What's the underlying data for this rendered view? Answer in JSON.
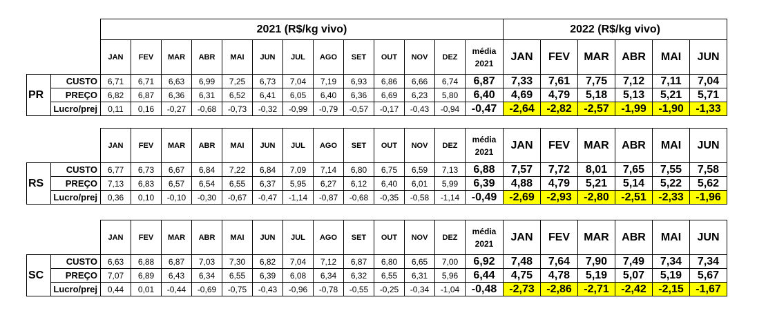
{
  "header": {
    "year_2021": "2021  (R$/kg vivo)",
    "year_2022": "2022 (R$/kg vivo)"
  },
  "blocks": [
    {
      "state": "PR",
      "months_2021": [
        "JAN",
        "FEV",
        "MAR",
        "ABR",
        "MAI",
        "JUN",
        "JUL",
        "AGO",
        "SET",
        "OUT",
        "NOV",
        "DEZ"
      ],
      "media_label": "média 2021",
      "months_2022": [
        "JAN",
        "FEV",
        "MAR",
        "ABR",
        "MAI",
        "JUN"
      ],
      "rows": [
        {
          "label": "CUSTO",
          "values_2021": [
            "6,71",
            "6,71",
            "6,63",
            "6,99",
            "7,25",
            "6,73",
            "7,04",
            "7,19",
            "6,93",
            "6,86",
            "6,66",
            "6,74"
          ],
          "media": "6,87",
          "values_2022": [
            "7,33",
            "7,61",
            "7,75",
            "7,12",
            "7,11",
            "7,04"
          ]
        },
        {
          "label": "PREÇO",
          "values_2021": [
            "6,82",
            "6,87",
            "6,36",
            "6,31",
            "6,52",
            "6,41",
            "6,05",
            "6,40",
            "6,36",
            "6,69",
            "6,23",
            "5,80"
          ],
          "media": "6,40",
          "values_2022": [
            "4,69",
            "4,79",
            "5,18",
            "5,13",
            "5,21",
            "5,71"
          ]
        },
        {
          "label": "Lucro/prej",
          "values_2021": [
            "0,11",
            "0,16",
            "-0,27",
            "-0,68",
            "-0,73",
            "-0,32",
            "-0,99",
            "-0,79",
            "-0,57",
            "-0,17",
            "-0,43",
            "-0,94"
          ],
          "media": "-0,47",
          "values_2022": [
            "-2,64",
            "-2,82",
            "-2,57",
            "-1,99",
            "-1,90",
            "-1,33"
          ]
        }
      ]
    },
    {
      "state": "RS",
      "months_2021": [
        "JAN",
        "FEV",
        "MAR",
        "ABR",
        "MAI",
        "JUN",
        "JUL",
        "AGO",
        "SET",
        "OUT",
        "NOV",
        "DEZ"
      ],
      "media_label": "média 2021",
      "months_2022": [
        "JAN",
        "FEV",
        "MAR",
        "ABR",
        "MAI",
        "JUN"
      ],
      "rows": [
        {
          "label": "CUSTO",
          "values_2021": [
            "6,77",
            "6,73",
            "6,67",
            "6,84",
            "7,22",
            "6,84",
            "7,09",
            "7,14",
            "6,80",
            "6,75",
            "6,59",
            "7,13"
          ],
          "media": "6,88",
          "values_2022": [
            "7,57",
            "7,72",
            "8,01",
            "7,65",
            "7,55",
            "7,58"
          ]
        },
        {
          "label": "PREÇO",
          "values_2021": [
            "7,13",
            "6,83",
            "6,57",
            "6,54",
            "6,55",
            "6,37",
            "5,95",
            "6,27",
            "6,12",
            "6,40",
            "6,01",
            "5,99"
          ],
          "media": "6,39",
          "values_2022": [
            "4,88",
            "4,79",
            "5,21",
            "5,14",
            "5,22",
            "5,62"
          ]
        },
        {
          "label": "Lucro/prej",
          "values_2021": [
            "0,36",
            "0,10",
            "-0,10",
            "-0,30",
            "-0,67",
            "-0,47",
            "-1,14",
            "-0,87",
            "-0,68",
            "-0,35",
            "-0,58",
            "-1,14"
          ],
          "media": "-0,49",
          "values_2022": [
            "-2,69",
            "-2,93",
            "-2,80",
            "-2,51",
            "-2,33",
            "-1,96"
          ]
        }
      ]
    },
    {
      "state": "SC",
      "months_2021": [
        "JAN",
        "FEV",
        "MAR",
        "ABR",
        "MAI",
        "JUN",
        "JUL",
        "AGO",
        "SET",
        "OUT",
        "NOV",
        "DEZ"
      ],
      "media_label": "média 2021",
      "months_2022": [
        "JAN",
        "FEV",
        "MAR",
        "ABR",
        "MAI",
        "JUN"
      ],
      "rows": [
        {
          "label": "CUSTO",
          "values_2021": [
            "6,63",
            "6,88",
            "6,87",
            "7,03",
            "7,30",
            "6,82",
            "7,04",
            "7,12",
            "6,87",
            "6,80",
            "6,65",
            "7,00"
          ],
          "media": "6,92",
          "values_2022": [
            "7,48",
            "7,64",
            "7,90",
            "7,49",
            "7,34",
            "7,34"
          ]
        },
        {
          "label": "PREÇO",
          "values_2021": [
            "7,07",
            "6,89",
            "6,43",
            "6,34",
            "6,55",
            "6,39",
            "6,08",
            "6,34",
            "6,32",
            "6,55",
            "6,31",
            "5,96"
          ],
          "media": "6,44",
          "values_2022": [
            "4,75",
            "4,78",
            "5,19",
            "5,07",
            "5,19",
            "5,67"
          ]
        },
        {
          "label": "Lucro/prej",
          "values_2021": [
            "0,44",
            "0,01",
            "-0,44",
            "-0,69",
            "-0,75",
            "-0,43",
            "-0,96",
            "-0,78",
            "-0,55",
            "-0,25",
            "-0,34",
            "-1,04"
          ],
          "media": "-0,48",
          "values_2022": [
            "-2,73",
            "-2,86",
            "-2,71",
            "-2,42",
            "-2,15",
            "-1,67"
          ]
        }
      ]
    }
  ]
}
